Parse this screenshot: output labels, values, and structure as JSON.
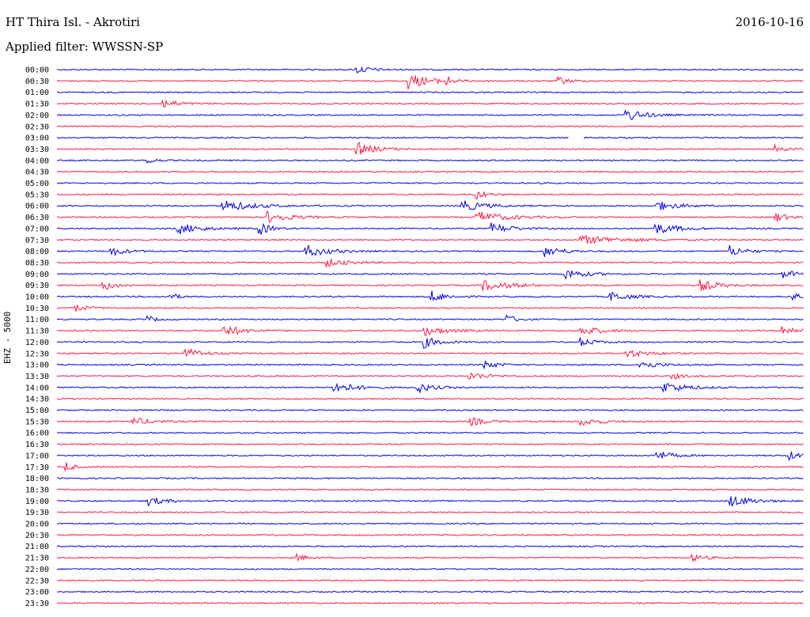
{
  "header": {
    "station": "HT Thira Isl. - Akrotiri",
    "date": "2016-10-16",
    "filter": "Applied filter: WWSSN-SP"
  },
  "channel_label": "EHZ - 5000",
  "colors": {
    "odd_trace": "#0000e6",
    "even_trace": "#ff1744",
    "background": "#ffffff"
  },
  "chart_data": {
    "type": "line",
    "title": "HT Thira Isl. - Akrotiri",
    "subtitle": "Applied filter: WWSSN-SP",
    "ylabel": "EHZ - 5000",
    "xlabel": "",
    "y_tick_labels": [
      "00:00",
      "00:30",
      "01:00",
      "01:30",
      "02:00",
      "02:30",
      "03:00",
      "03:30",
      "04:00",
      "04:30",
      "05:00",
      "05:30",
      "06:00",
      "06:30",
      "07:00",
      "07:30",
      "08:00",
      "08:30",
      "09:00",
      "09:30",
      "10:00",
      "10:30",
      "11:00",
      "11:30",
      "12:00",
      "12:30",
      "13:00",
      "13:30",
      "14:00",
      "14:30",
      "15:00",
      "15:30",
      "16:00",
      "16:30",
      "17:00",
      "17:30",
      "18:00",
      "18:30",
      "19:00",
      "19:30",
      "20:00",
      "20:30",
      "21:00",
      "21:30",
      "22:00",
      "22:30",
      "23:00",
      "23:30"
    ],
    "trace_span_minutes": 30,
    "grid": false,
    "events": [
      {
        "row": "00:00",
        "t": 0.4,
        "amp": 0.5,
        "dur": 0.04
      },
      {
        "row": "00:30",
        "t": 0.47,
        "amp": 0.9,
        "dur": 0.06
      },
      {
        "row": "00:30",
        "t": 0.52,
        "amp": 1.0,
        "dur": 0.01
      },
      {
        "row": "00:30",
        "t": 0.67,
        "amp": 0.5,
        "dur": 0.03
      },
      {
        "row": "01:30",
        "t": 0.14,
        "amp": 0.6,
        "dur": 0.04
      },
      {
        "row": "02:00",
        "t": 0.76,
        "amp": 0.8,
        "dur": 0.05
      },
      {
        "row": "03:30",
        "t": 0.4,
        "amp": 0.8,
        "dur": 0.05
      },
      {
        "row": "03:30",
        "t": 0.96,
        "amp": 0.6,
        "dur": 0.03
      },
      {
        "row": "04:00",
        "t": 0.12,
        "amp": 0.5,
        "dur": 0.02
      },
      {
        "row": "05:30",
        "t": 0.56,
        "amp": 0.6,
        "dur": 0.03
      },
      {
        "row": "06:00",
        "t": 0.22,
        "amp": 0.7,
        "dur": 0.08
      },
      {
        "row": "06:00",
        "t": 0.54,
        "amp": 0.7,
        "dur": 0.06
      },
      {
        "row": "06:00",
        "t": 0.8,
        "amp": 0.6,
        "dur": 0.06
      },
      {
        "row": "06:30",
        "t": 0.28,
        "amp": 0.7,
        "dur": 0.06
      },
      {
        "row": "06:30",
        "t": 0.56,
        "amp": 0.7,
        "dur": 0.08
      },
      {
        "row": "06:30",
        "t": 0.96,
        "amp": 0.7,
        "dur": 0.03
      },
      {
        "row": "07:00",
        "t": 0.16,
        "amp": 0.7,
        "dur": 0.06
      },
      {
        "row": "07:00",
        "t": 0.27,
        "amp": 0.8,
        "dur": 0.03
      },
      {
        "row": "07:00",
        "t": 0.58,
        "amp": 0.7,
        "dur": 0.05
      },
      {
        "row": "07:00",
        "t": 0.8,
        "amp": 0.6,
        "dur": 0.07
      },
      {
        "row": "07:30",
        "t": 0.7,
        "amp": 0.5,
        "dur": 0.12
      },
      {
        "row": "08:00",
        "t": 0.07,
        "amp": 0.6,
        "dur": 0.04
      },
      {
        "row": "08:00",
        "t": 0.33,
        "amp": 0.8,
        "dur": 0.06
      },
      {
        "row": "08:00",
        "t": 0.65,
        "amp": 0.7,
        "dur": 0.05
      },
      {
        "row": "08:00",
        "t": 0.9,
        "amp": 0.7,
        "dur": 0.04
      },
      {
        "row": "08:30",
        "t": 0.36,
        "amp": 0.5,
        "dur": 0.06
      },
      {
        "row": "09:00",
        "t": 0.68,
        "amp": 0.7,
        "dur": 0.05
      },
      {
        "row": "09:00",
        "t": 0.97,
        "amp": 0.7,
        "dur": 0.03
      },
      {
        "row": "09:30",
        "t": 0.06,
        "amp": 0.6,
        "dur": 0.04
      },
      {
        "row": "09:30",
        "t": 0.57,
        "amp": 0.6,
        "dur": 0.08
      },
      {
        "row": "09:30",
        "t": 0.86,
        "amp": 0.7,
        "dur": 0.05
      },
      {
        "row": "10:00",
        "t": 0.15,
        "amp": 0.6,
        "dur": 0.02
      },
      {
        "row": "10:00",
        "t": 0.5,
        "amp": 0.7,
        "dur": 0.04
      },
      {
        "row": "10:00",
        "t": 0.74,
        "amp": 0.6,
        "dur": 0.05
      },
      {
        "row": "10:00",
        "t": 0.98,
        "amp": 0.9,
        "dur": 0.02
      },
      {
        "row": "10:30",
        "t": 0.02,
        "amp": 0.6,
        "dur": 0.03
      },
      {
        "row": "11:00",
        "t": 0.12,
        "amp": 0.5,
        "dur": 0.02
      },
      {
        "row": "11:00",
        "t": 0.6,
        "amp": 0.6,
        "dur": 0.03
      },
      {
        "row": "11:30",
        "t": 0.22,
        "amp": 0.8,
        "dur": 0.05
      },
      {
        "row": "11:30",
        "t": 0.49,
        "amp": 0.6,
        "dur": 0.06
      },
      {
        "row": "11:30",
        "t": 0.7,
        "amp": 0.7,
        "dur": 0.05
      },
      {
        "row": "11:30",
        "t": 0.97,
        "amp": 0.7,
        "dur": 0.04
      },
      {
        "row": "12:00",
        "t": 0.49,
        "amp": 0.7,
        "dur": 0.04
      },
      {
        "row": "12:00",
        "t": 0.7,
        "amp": 0.5,
        "dur": 0.04
      },
      {
        "row": "12:30",
        "t": 0.17,
        "amp": 0.6,
        "dur": 0.05
      },
      {
        "row": "12:30",
        "t": 0.76,
        "amp": 0.5,
        "dur": 0.06
      },
      {
        "row": "13:00",
        "t": 0.57,
        "amp": 0.7,
        "dur": 0.03
      },
      {
        "row": "13:00",
        "t": 0.78,
        "amp": 0.5,
        "dur": 0.05
      },
      {
        "row": "13:30",
        "t": 0.55,
        "amp": 0.5,
        "dur": 0.05
      },
      {
        "row": "13:30",
        "t": 0.82,
        "amp": 0.5,
        "dur": 0.03
      },
      {
        "row": "14:00",
        "t": 0.37,
        "amp": 0.8,
        "dur": 0.05
      },
      {
        "row": "14:00",
        "t": 0.48,
        "amp": 0.7,
        "dur": 0.04
      },
      {
        "row": "14:00",
        "t": 0.81,
        "amp": 0.7,
        "dur": 0.06
      },
      {
        "row": "15:30",
        "t": 0.1,
        "amp": 0.5,
        "dur": 0.05
      },
      {
        "row": "15:30",
        "t": 0.55,
        "amp": 0.6,
        "dur": 0.04
      },
      {
        "row": "15:30",
        "t": 0.7,
        "amp": 0.5,
        "dur": 0.05
      },
      {
        "row": "17:00",
        "t": 0.8,
        "amp": 0.7,
        "dur": 0.04
      },
      {
        "row": "17:00",
        "t": 0.98,
        "amp": 0.5,
        "dur": 0.03
      },
      {
        "row": "17:30",
        "t": 0.01,
        "amp": 0.8,
        "dur": 0.02
      },
      {
        "row": "19:00",
        "t": 0.12,
        "amp": 0.6,
        "dur": 0.04
      },
      {
        "row": "19:00",
        "t": 0.9,
        "amp": 0.7,
        "dur": 0.06
      },
      {
        "row": "21:30",
        "t": 0.32,
        "amp": 0.4,
        "dur": 0.03
      },
      {
        "row": "21:30",
        "t": 0.85,
        "amp": 0.4,
        "dur": 0.04
      }
    ],
    "gaps": [
      {
        "row": "03:00",
        "t_start": 0.685,
        "t_end": 0.705
      }
    ]
  }
}
